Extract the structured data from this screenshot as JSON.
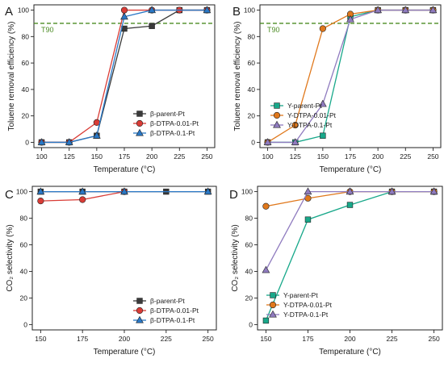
{
  "chart_data": [
    {
      "panel": "A",
      "type": "line",
      "ylabel": "Toluene removal efficiency (%)",
      "xlabel": "Temperature (°C)",
      "xlim": [
        93,
        257
      ],
      "ylim": [
        -4,
        104
      ],
      "xticks": [
        100,
        125,
        150,
        175,
        200,
        225,
        250
      ],
      "yticks": [
        0,
        20,
        40,
        60,
        80,
        100
      ],
      "reference_line": {
        "y": 90,
        "label": "T90",
        "color": "#4a8a22"
      },
      "legend": {
        "placement": "bottom-right"
      },
      "series": [
        {
          "name": "β-parent-Pt",
          "color": "#3a3a3a",
          "marker": "square",
          "x": [
            100,
            125,
            150,
            175,
            200,
            225,
            250
          ],
          "y": [
            0,
            0,
            5,
            86,
            88,
            100,
            100
          ]
        },
        {
          "name": "β-DTPA-0.01-Pt",
          "color": "#d93c36",
          "marker": "circle",
          "x": [
            100,
            125,
            150,
            175,
            200,
            225,
            250
          ],
          "y": [
            0,
            0,
            15,
            100,
            100,
            100,
            100
          ]
        },
        {
          "name": "β-DTPA-0.1-Pt",
          "color": "#2a78c6",
          "marker": "triangle",
          "x": [
            100,
            125,
            150,
            175,
            200,
            250
          ],
          "y": [
            0,
            0,
            5,
            95,
            100,
            100
          ]
        }
      ]
    },
    {
      "panel": "B",
      "type": "line",
      "ylabel": "Toluene removal efficiency (%)",
      "xlabel": "Temperature (°C)",
      "xlim": [
        93,
        257
      ],
      "ylim": [
        -4,
        104
      ],
      "xticks": [
        100,
        125,
        150,
        175,
        200,
        225,
        250
      ],
      "yticks": [
        0,
        20,
        40,
        60,
        80,
        100
      ],
      "reference_line": {
        "y": 90,
        "label": "T90",
        "color": "#4a8a22"
      },
      "legend": {
        "placement": "bottom-right"
      },
      "series": [
        {
          "name": "Y-parent-Pt",
          "color": "#18a88a",
          "marker": "square",
          "x": [
            100,
            125,
            150,
            175,
            200,
            225,
            250
          ],
          "y": [
            0,
            0,
            5,
            95,
            100,
            100,
            100
          ]
        },
        {
          "name": "Y-DTPA-0.01-Pt",
          "color": "#e0781c",
          "marker": "circle",
          "x": [
            100,
            125,
            150,
            175,
            200,
            225,
            250
          ],
          "y": [
            0,
            13,
            86,
            97,
            100,
            100,
            100
          ]
        },
        {
          "name": "Y-DTPA-0.1-Pt",
          "color": "#8f7bbf",
          "marker": "triangle",
          "x": [
            100,
            125,
            150,
            175,
            200,
            225,
            250
          ],
          "y": [
            0,
            0,
            29,
            93,
            100,
            100,
            100
          ]
        }
      ]
    },
    {
      "panel": "C",
      "type": "line",
      "ylabel": "CO₂ selectivity (%)",
      "xlabel": "Temperature (°C)",
      "xlim": [
        145,
        255
      ],
      "ylim": [
        -4,
        104
      ],
      "xticks": [
        150,
        175,
        200,
        225,
        250
      ],
      "yticks": [
        0,
        20,
        40,
        60,
        80,
        100
      ],
      "legend": {
        "placement": "bottom-right"
      },
      "series": [
        {
          "name": "β-parent-Pt",
          "color": "#3a3a3a",
          "marker": "square",
          "x": [
            150,
            175,
            200,
            225,
            250
          ],
          "y": [
            100,
            100,
            100,
            100,
            100
          ]
        },
        {
          "name": "β-DTPA-0.01-Pt",
          "color": "#d93c36",
          "marker": "circle",
          "x": [
            150,
            175,
            200
          ],
          "y": [
            93,
            94,
            100
          ]
        },
        {
          "name": "β-DTPA-0.1-Pt",
          "color": "#2a78c6",
          "marker": "triangle",
          "x": [
            150,
            175,
            200,
            250
          ],
          "y": [
            100,
            100,
            100,
            100
          ]
        }
      ]
    },
    {
      "panel": "D",
      "type": "line",
      "ylabel": "CO₂ selectivity (%)",
      "xlabel": "Temperature (°C)",
      "xlim": [
        145,
        255
      ],
      "ylim": [
        -4,
        104
      ],
      "xticks": [
        150,
        175,
        200,
        225,
        250
      ],
      "yticks": [
        0,
        20,
        40,
        60,
        80,
        100
      ],
      "legend": {
        "placement": "bottom-right"
      },
      "series": [
        {
          "name": "Y-parent-Pt",
          "color": "#18a88a",
          "marker": "square",
          "x": [
            150,
            175,
            200,
            225,
            250
          ],
          "y": [
            3,
            79,
            90,
            100,
            100
          ]
        },
        {
          "name": "Y-DTPA-0.01-Pt",
          "color": "#e0781c",
          "marker": "circle",
          "x": [
            150,
            175,
            200,
            225,
            250
          ],
          "y": [
            89,
            95,
            100,
            100,
            100
          ]
        },
        {
          "name": "Y-DTPA-0.1-Pt",
          "color": "#8f7bbf",
          "marker": "triangle",
          "x": [
            150,
            175,
            200,
            225,
            250
          ],
          "y": [
            41,
            100,
            100,
            100,
            100
          ]
        }
      ]
    }
  ]
}
